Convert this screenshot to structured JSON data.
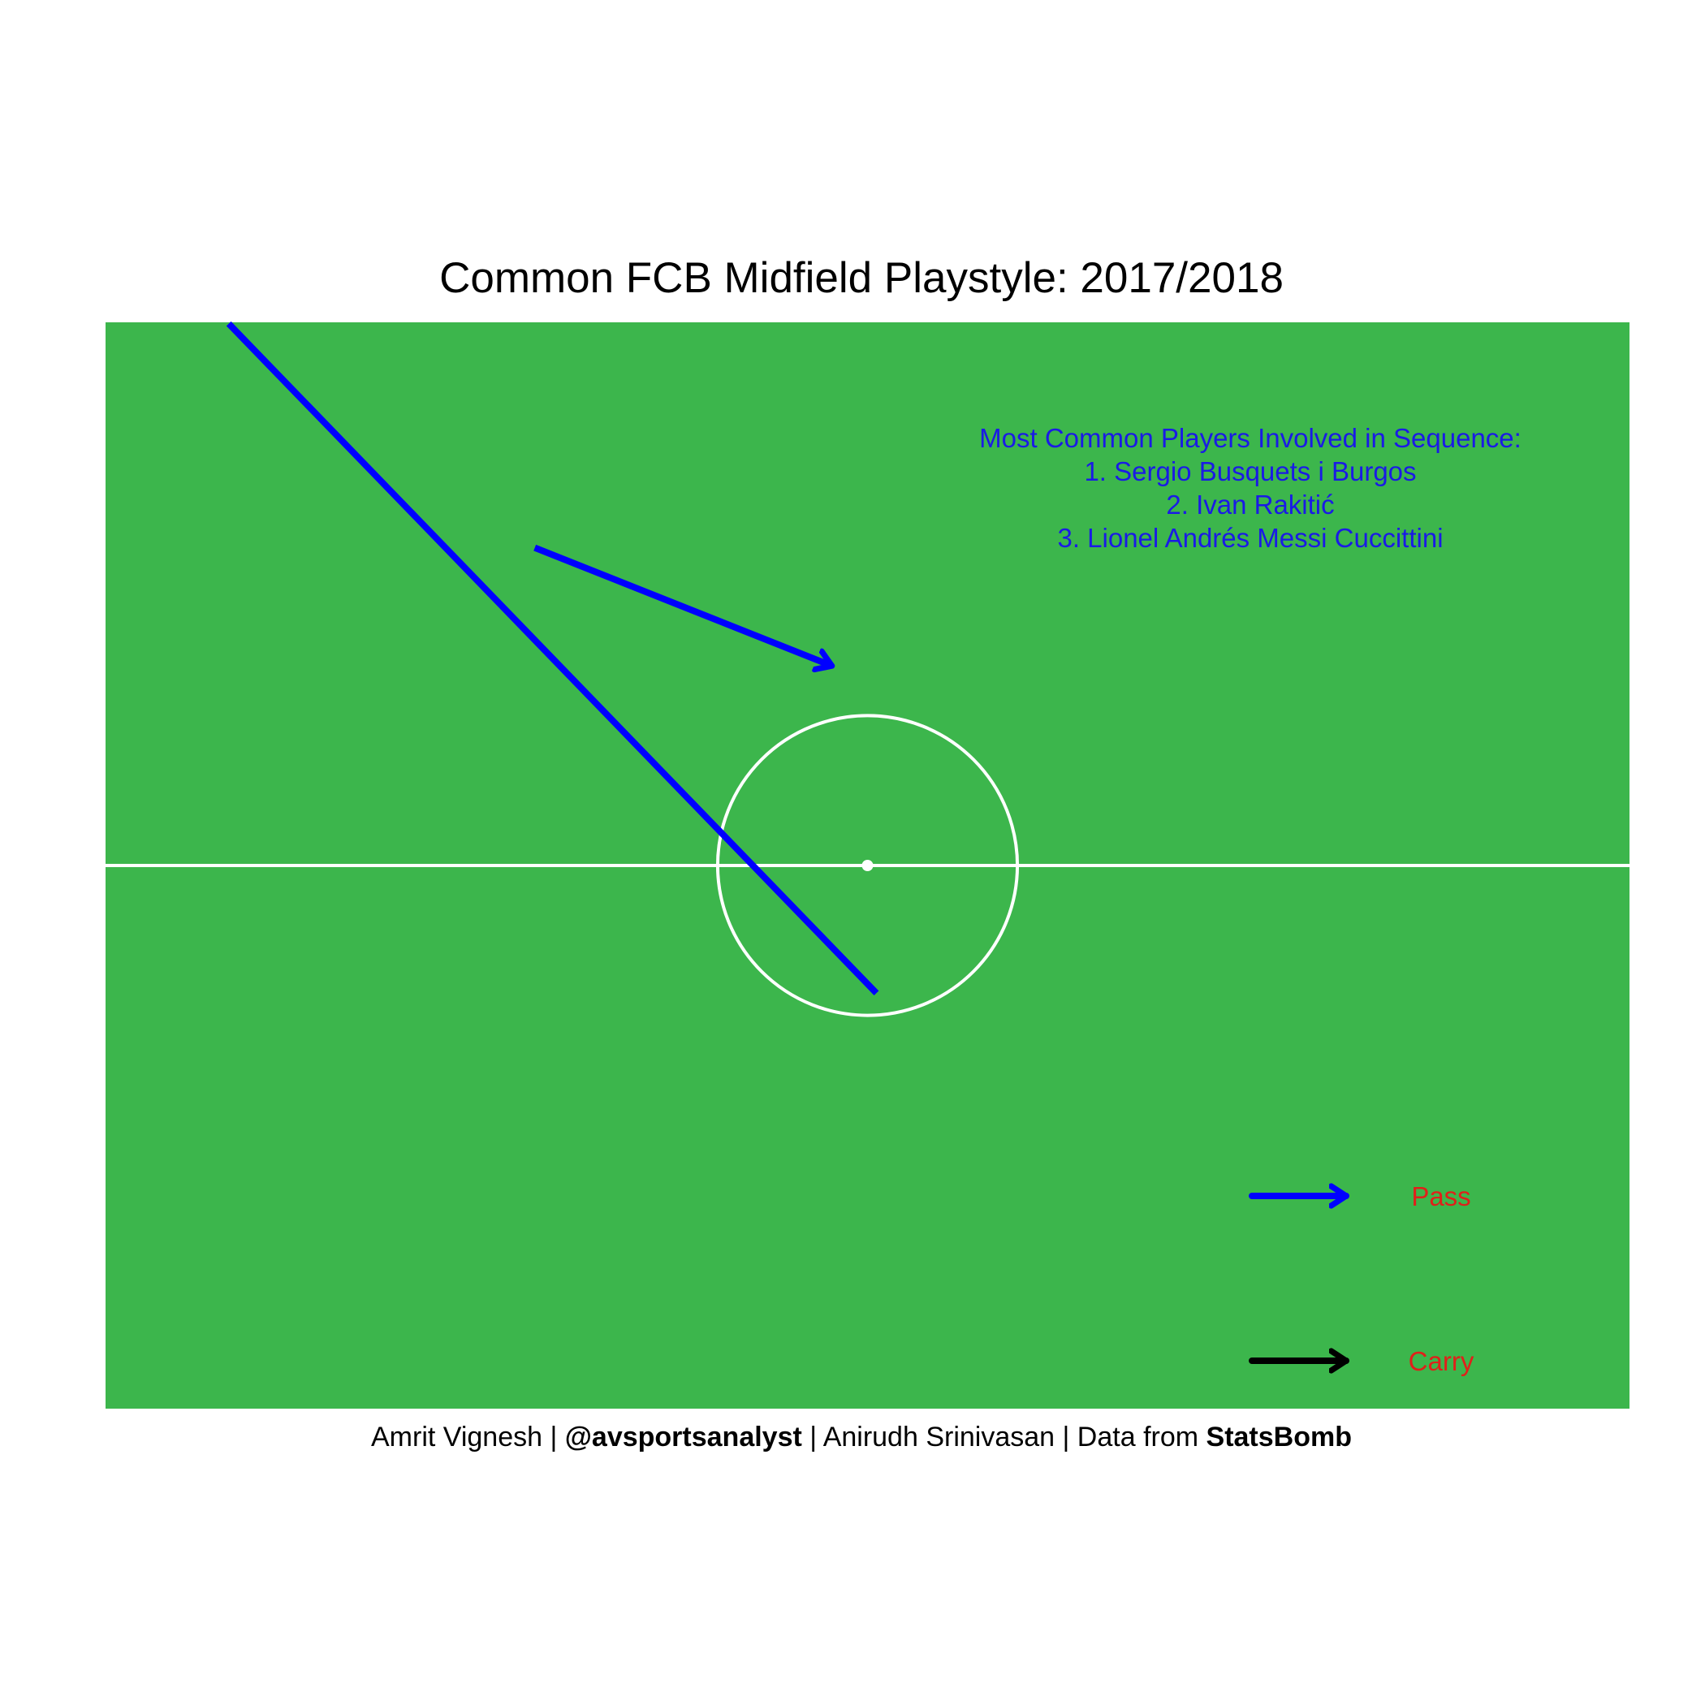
{
  "colors": {
    "pitch": "#3cb64c",
    "lines": "#ffffff",
    "pass": "#0000ff",
    "carry": "#000000",
    "players_text": "#1a1ae6",
    "legend_text": "#e0201a"
  },
  "chart_data": {
    "type": "pitch-arrow-map",
    "title": "Common FCB Midfield Playstyle:  2017/2018",
    "x_range": [
      0,
      120
    ],
    "y_range": [
      0,
      80
    ],
    "pitch": {
      "halfway_x": 60,
      "center_spot": [
        60,
        40
      ],
      "center_circle_radius": 10
    },
    "arrows": [
      {
        "name": "pass-arrow-long",
        "type": "Pass",
        "start": [
          33.8,
          63.4
        ],
        "end": [
          57.2,
          54.7
        ],
        "arrowhead": true
      },
      {
        "name": "pass-line-diagonal",
        "type": "Pass",
        "start": [
          9.7,
          79.9
        ],
        "end": [
          60.7,
          30.6
        ],
        "arrowhead": false
      }
    ],
    "annotation": {
      "heading": "Most Common Players Involved in Sequence:",
      "players": [
        "1.  Sergio Busquets i Burgos",
        "2.  Ivan Rakitić",
        "3.  Lionel Andrés Messi Cuccittini"
      ]
    },
    "legend": [
      {
        "label": "Pass",
        "type": "Pass"
      },
      {
        "label": "Carry",
        "type": "Carry"
      }
    ]
  },
  "caption": {
    "author": "Amrit Vignesh",
    "sep1": " | ",
    "handle": "@avsportsanalyst",
    "sep2": " | ",
    "coauthor": "Anirudh Srinivasan",
    "sep3": " | Data from ",
    "source": "StatsBomb"
  }
}
